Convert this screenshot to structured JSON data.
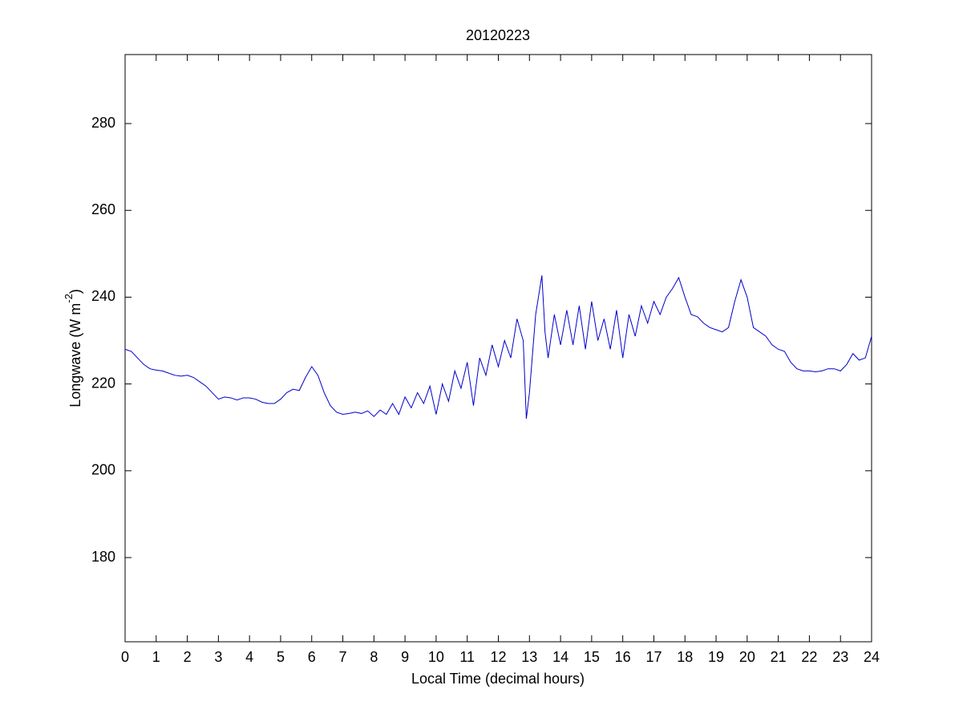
{
  "chart_data": {
    "type": "line",
    "title": "20120223",
    "xlabel": "Local Time (decimal hours)",
    "ylabel": [
      "Longwave (W m",
      "-2",
      ")"
    ],
    "x": [
      0,
      0.2,
      0.4,
      0.6,
      0.8,
      1.0,
      1.2,
      1.4,
      1.6,
      1.8,
      2.0,
      2.2,
      2.4,
      2.6,
      2.8,
      3.0,
      3.2,
      3.4,
      3.6,
      3.8,
      4.0,
      4.2,
      4.4,
      4.6,
      4.8,
      5.0,
      5.2,
      5.4,
      5.6,
      5.8,
      6.0,
      6.2,
      6.4,
      6.6,
      6.8,
      7.0,
      7.2,
      7.4,
      7.6,
      7.8,
      8.0,
      8.2,
      8.4,
      8.6,
      8.8,
      9.0,
      9.2,
      9.4,
      9.6,
      9.8,
      10.0,
      10.2,
      10.4,
      10.6,
      10.8,
      11.0,
      11.2,
      11.4,
      11.6,
      11.8,
      12.0,
      12.2,
      12.4,
      12.6,
      12.8,
      12.9,
      13.0,
      13.2,
      13.4,
      13.5,
      13.6,
      13.8,
      14.0,
      14.2,
      14.4,
      14.6,
      14.8,
      15.0,
      15.2,
      15.4,
      15.6,
      15.8,
      16.0,
      16.2,
      16.4,
      16.6,
      16.8,
      17.0,
      17.2,
      17.4,
      17.6,
      17.8,
      18.0,
      18.2,
      18.4,
      18.6,
      18.8,
      19.0,
      19.2,
      19.4,
      19.6,
      19.8,
      20.0,
      20.2,
      20.4,
      20.6,
      20.8,
      21.0,
      21.2,
      21.4,
      21.6,
      21.8,
      22.0,
      22.2,
      22.4,
      22.6,
      22.8,
      23.0,
      23.2,
      23.4,
      23.6,
      23.8,
      24.0
    ],
    "series": [
      {
        "color": "#0000cc",
        "values": [
          228,
          227.5,
          226,
          224.5,
          223.5,
          223.2,
          223,
          222.5,
          222,
          221.8,
          222,
          221.5,
          220.5,
          219.5,
          218,
          216.5,
          217,
          216.8,
          216.3,
          216.8,
          216.8,
          216.5,
          215.8,
          215.5,
          215.5,
          216.5,
          218,
          218.8,
          218.5,
          221.5,
          224,
          222,
          218,
          215,
          213.5,
          213,
          213.2,
          213.5,
          213.2,
          213.8,
          212.5,
          214,
          213,
          215.5,
          213,
          217,
          214.5,
          218,
          215.5,
          219.5,
          213,
          220,
          216,
          223,
          219,
          225,
          215,
          226,
          222,
          229,
          224,
          230,
          226,
          235,
          230,
          212,
          218,
          236,
          245,
          232,
          226,
          236,
          229,
          237,
          229,
          238,
          228,
          239,
          230,
          235,
          228,
          237,
          226,
          236,
          231,
          238,
          234,
          239,
          236,
          240,
          242,
          244.5,
          240,
          236,
          235.5,
          234,
          233,
          232.5,
          232,
          233,
          239,
          244,
          240,
          233,
          232,
          231,
          229,
          228,
          227.5,
          225,
          223.5,
          223,
          223,
          222.8,
          223,
          223.5,
          223.5,
          223,
          224.5,
          227,
          225.5,
          226,
          231
        ]
      }
    ],
    "xlim": [
      0,
      24
    ],
    "ylim": [
      160.6,
      295.9
    ],
    "xticks": [
      0,
      1,
      2,
      3,
      4,
      5,
      6,
      7,
      8,
      9,
      10,
      11,
      12,
      13,
      14,
      15,
      16,
      17,
      18,
      19,
      20,
      21,
      22,
      23,
      24
    ],
    "yticks": [
      180,
      200,
      220,
      240,
      260,
      280
    ]
  }
}
